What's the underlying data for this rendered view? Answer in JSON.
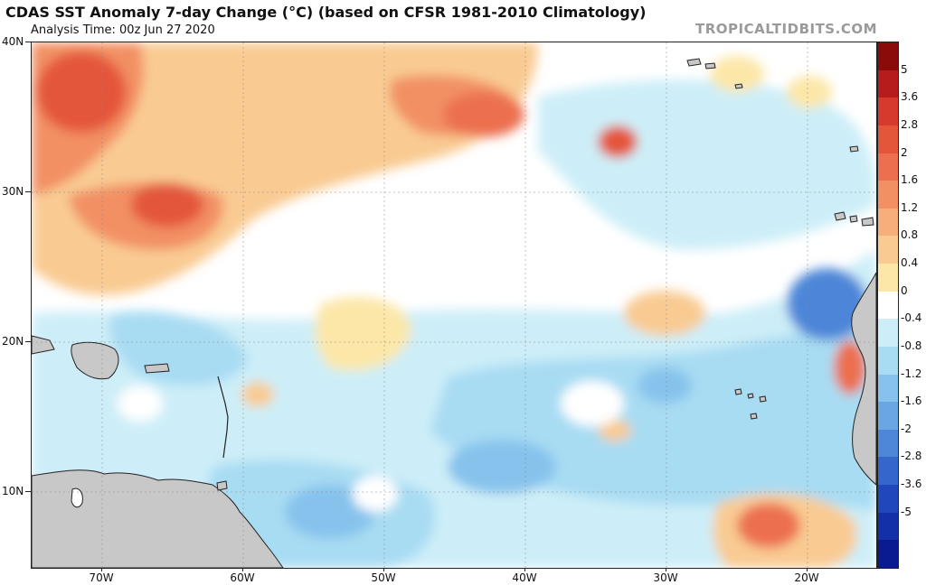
{
  "header": {
    "title": "CDAS SST Anomaly 7-day Change (°C) (based on CFSR 1981-2010 Climatology)",
    "analysis_time": "Analysis Time: 00z Jun 27 2020",
    "credit": "TROPICALTIDBITS.COM"
  },
  "axes": {
    "lat_labels": [
      "40N",
      "30N",
      "20N",
      "10N"
    ],
    "lon_labels": [
      "70W",
      "60W",
      "50W",
      "40W",
      "30W",
      "20W"
    ]
  },
  "colorbar": {
    "labels": [
      "5",
      "3.6",
      "2.8",
      "2",
      "1.6",
      "1.2",
      "0.8",
      "0.4",
      "0",
      "-0.4",
      "-0.8",
      "-1.2",
      "-1.6",
      "-2",
      "-2.8",
      "-3.6",
      "-5"
    ],
    "colors": [
      "#8b0a0a",
      "#b71c1c",
      "#d63a2c",
      "#e4563a",
      "#ec7050",
      "#f29063",
      "#f6ae7b",
      "#f9cb93",
      "#fce7a8",
      "#ffffff",
      "#cdeef8",
      "#a8dcf3",
      "#86c2ec",
      "#6aa6e2",
      "#4e86d8",
      "#3566cc",
      "#2047bb",
      "#1330a8",
      "#0a1a90"
    ]
  },
  "map": {
    "anomaly_colors": {
      "strong_warm": "#e4563a",
      "warm": "#f29063",
      "mild_warm": "#f9cb93",
      "slight_warm": "#fce7a8",
      "neutral": "#ffffff",
      "slight_cool": "#cdeef8",
      "cool": "#a8dcf3",
      "mild_cool": "#86c2ec",
      "strong_cool": "#4e86d8",
      "land": "#c8c8c8",
      "coastline": "#222222"
    }
  }
}
